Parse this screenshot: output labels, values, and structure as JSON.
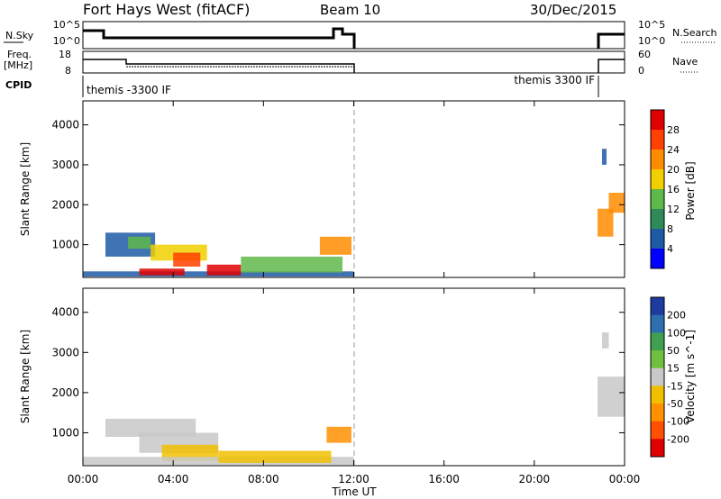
{
  "header": {
    "station": "Fort Hays West (fitACF)",
    "beam": "Beam 10",
    "date": "30/Dec/2015"
  },
  "top_panels": {
    "nsky_label": "N.Sky",
    "nsky_ticks": [
      "10^5",
      "10^0"
    ],
    "nsearch_label": "N.Search",
    "nsearch_ticks": [
      "10^5",
      "10^0"
    ],
    "freq_label_1": "Freq.",
    "freq_label_2": "[MHz]",
    "freq_ticks": [
      "18",
      "8"
    ],
    "nave_label": "Nave",
    "nave_ticks": [
      "60",
      "0"
    ],
    "cpid_label": "CPID",
    "cpid_left": "themis -3300 IF",
    "cpid_right": "themis 3300 IF"
  },
  "colors": {
    "power": [
      "#0000ff",
      "#1e5aa6",
      "#2e8b57",
      "#5fb84a",
      "#f0d000",
      "#ff8c00",
      "#ff4000",
      "#e00000"
    ],
    "velocity": [
      "#1e3ca0",
      "#2e6fb0",
      "#3ea050",
      "#70c040",
      "#c8c8c8",
      "#f0c000",
      "#ff9000",
      "#ff5000",
      "#e00000"
    ],
    "ground": "#c0c0c0"
  },
  "chart_data": [
    {
      "type": "heatmap",
      "title": "Power",
      "ylabel": "Slant Range [km]",
      "xlabel": "",
      "x_range_hours": [
        0,
        24
      ],
      "y_range_km": [
        180,
        4600
      ],
      "y_ticks": [
        "1000",
        "2000",
        "3000",
        "4000"
      ],
      "colorbar_label": "Power [dB]",
      "colorbar_ticks": [
        "4",
        "8",
        "12",
        "16",
        "20",
        "24",
        "28"
      ],
      "regions": [
        {
          "t": [
            0.0,
            12.0
          ],
          "r": [
            200,
            330
          ],
          "level": 1
        },
        {
          "t": [
            1.0,
            3.2
          ],
          "r": [
            700,
            1300
          ],
          "level": 1
        },
        {
          "t": [
            2.0,
            3.0
          ],
          "r": [
            900,
            1200
          ],
          "level": 3
        },
        {
          "t": [
            3.0,
            5.5
          ],
          "r": [
            600,
            1000
          ],
          "level": 4
        },
        {
          "t": [
            4.0,
            5.2
          ],
          "r": [
            450,
            800
          ],
          "level": 6
        },
        {
          "t": [
            2.5,
            4.5
          ],
          "r": [
            230,
            400
          ],
          "level": 7
        },
        {
          "t": [
            5.5,
            7.0
          ],
          "r": [
            230,
            500
          ],
          "level": 7
        },
        {
          "t": [
            7.0,
            11.5
          ],
          "r": [
            300,
            700
          ],
          "level": 3
        },
        {
          "t": [
            10.5,
            11.9
          ],
          "r": [
            750,
            1200
          ],
          "level": 5
        },
        {
          "t": [
            22.8,
            23.5
          ],
          "r": [
            1200,
            1900
          ],
          "level": 5
        },
        {
          "t": [
            23.3,
            24.0
          ],
          "r": [
            1800,
            2300
          ],
          "level": 5
        },
        {
          "t": [
            23.0,
            23.2
          ],
          "r": [
            3000,
            3400
          ],
          "level": 1
        }
      ]
    },
    {
      "type": "heatmap",
      "title": "Velocity",
      "ylabel": "Slant Range [km]",
      "xlabel": "Time UT",
      "x_ticks": [
        "00:00",
        "04:00",
        "08:00",
        "12:00",
        "16:00",
        "20:00",
        "00:00"
      ],
      "x_range_hours": [
        0,
        24
      ],
      "y_range_km": [
        180,
        4600
      ],
      "y_ticks": [
        "1000",
        "2000",
        "3000",
        "4000"
      ],
      "colorbar_label": "Velocity [m s^-1]",
      "colorbar_ticks": [
        "200",
        "100",
        "50",
        "15",
        "-15",
        "-50",
        "-100",
        "-200"
      ],
      "regions": [
        {
          "t": [
            1.0,
            5.0
          ],
          "r": [
            900,
            1350
          ],
          "level": 4
        },
        {
          "t": [
            2.5,
            6.0
          ],
          "r": [
            500,
            1000
          ],
          "level": 4
        },
        {
          "t": [
            3.5,
            6.0
          ],
          "r": [
            300,
            700
          ],
          "level": 5
        },
        {
          "t": [
            0.0,
            12.0
          ],
          "r": [
            200,
            400
          ],
          "level": 4
        },
        {
          "t": [
            6.0,
            11.0
          ],
          "r": [
            250,
            550
          ],
          "level": 5
        },
        {
          "t": [
            10.8,
            11.9
          ],
          "r": [
            750,
            1150
          ],
          "level": 6
        },
        {
          "t": [
            22.8,
            24.0
          ],
          "r": [
            1400,
            2400
          ],
          "level": 4
        },
        {
          "t": [
            23.0,
            23.3
          ],
          "r": [
            3100,
            3500
          ],
          "level": 4
        }
      ]
    }
  ]
}
